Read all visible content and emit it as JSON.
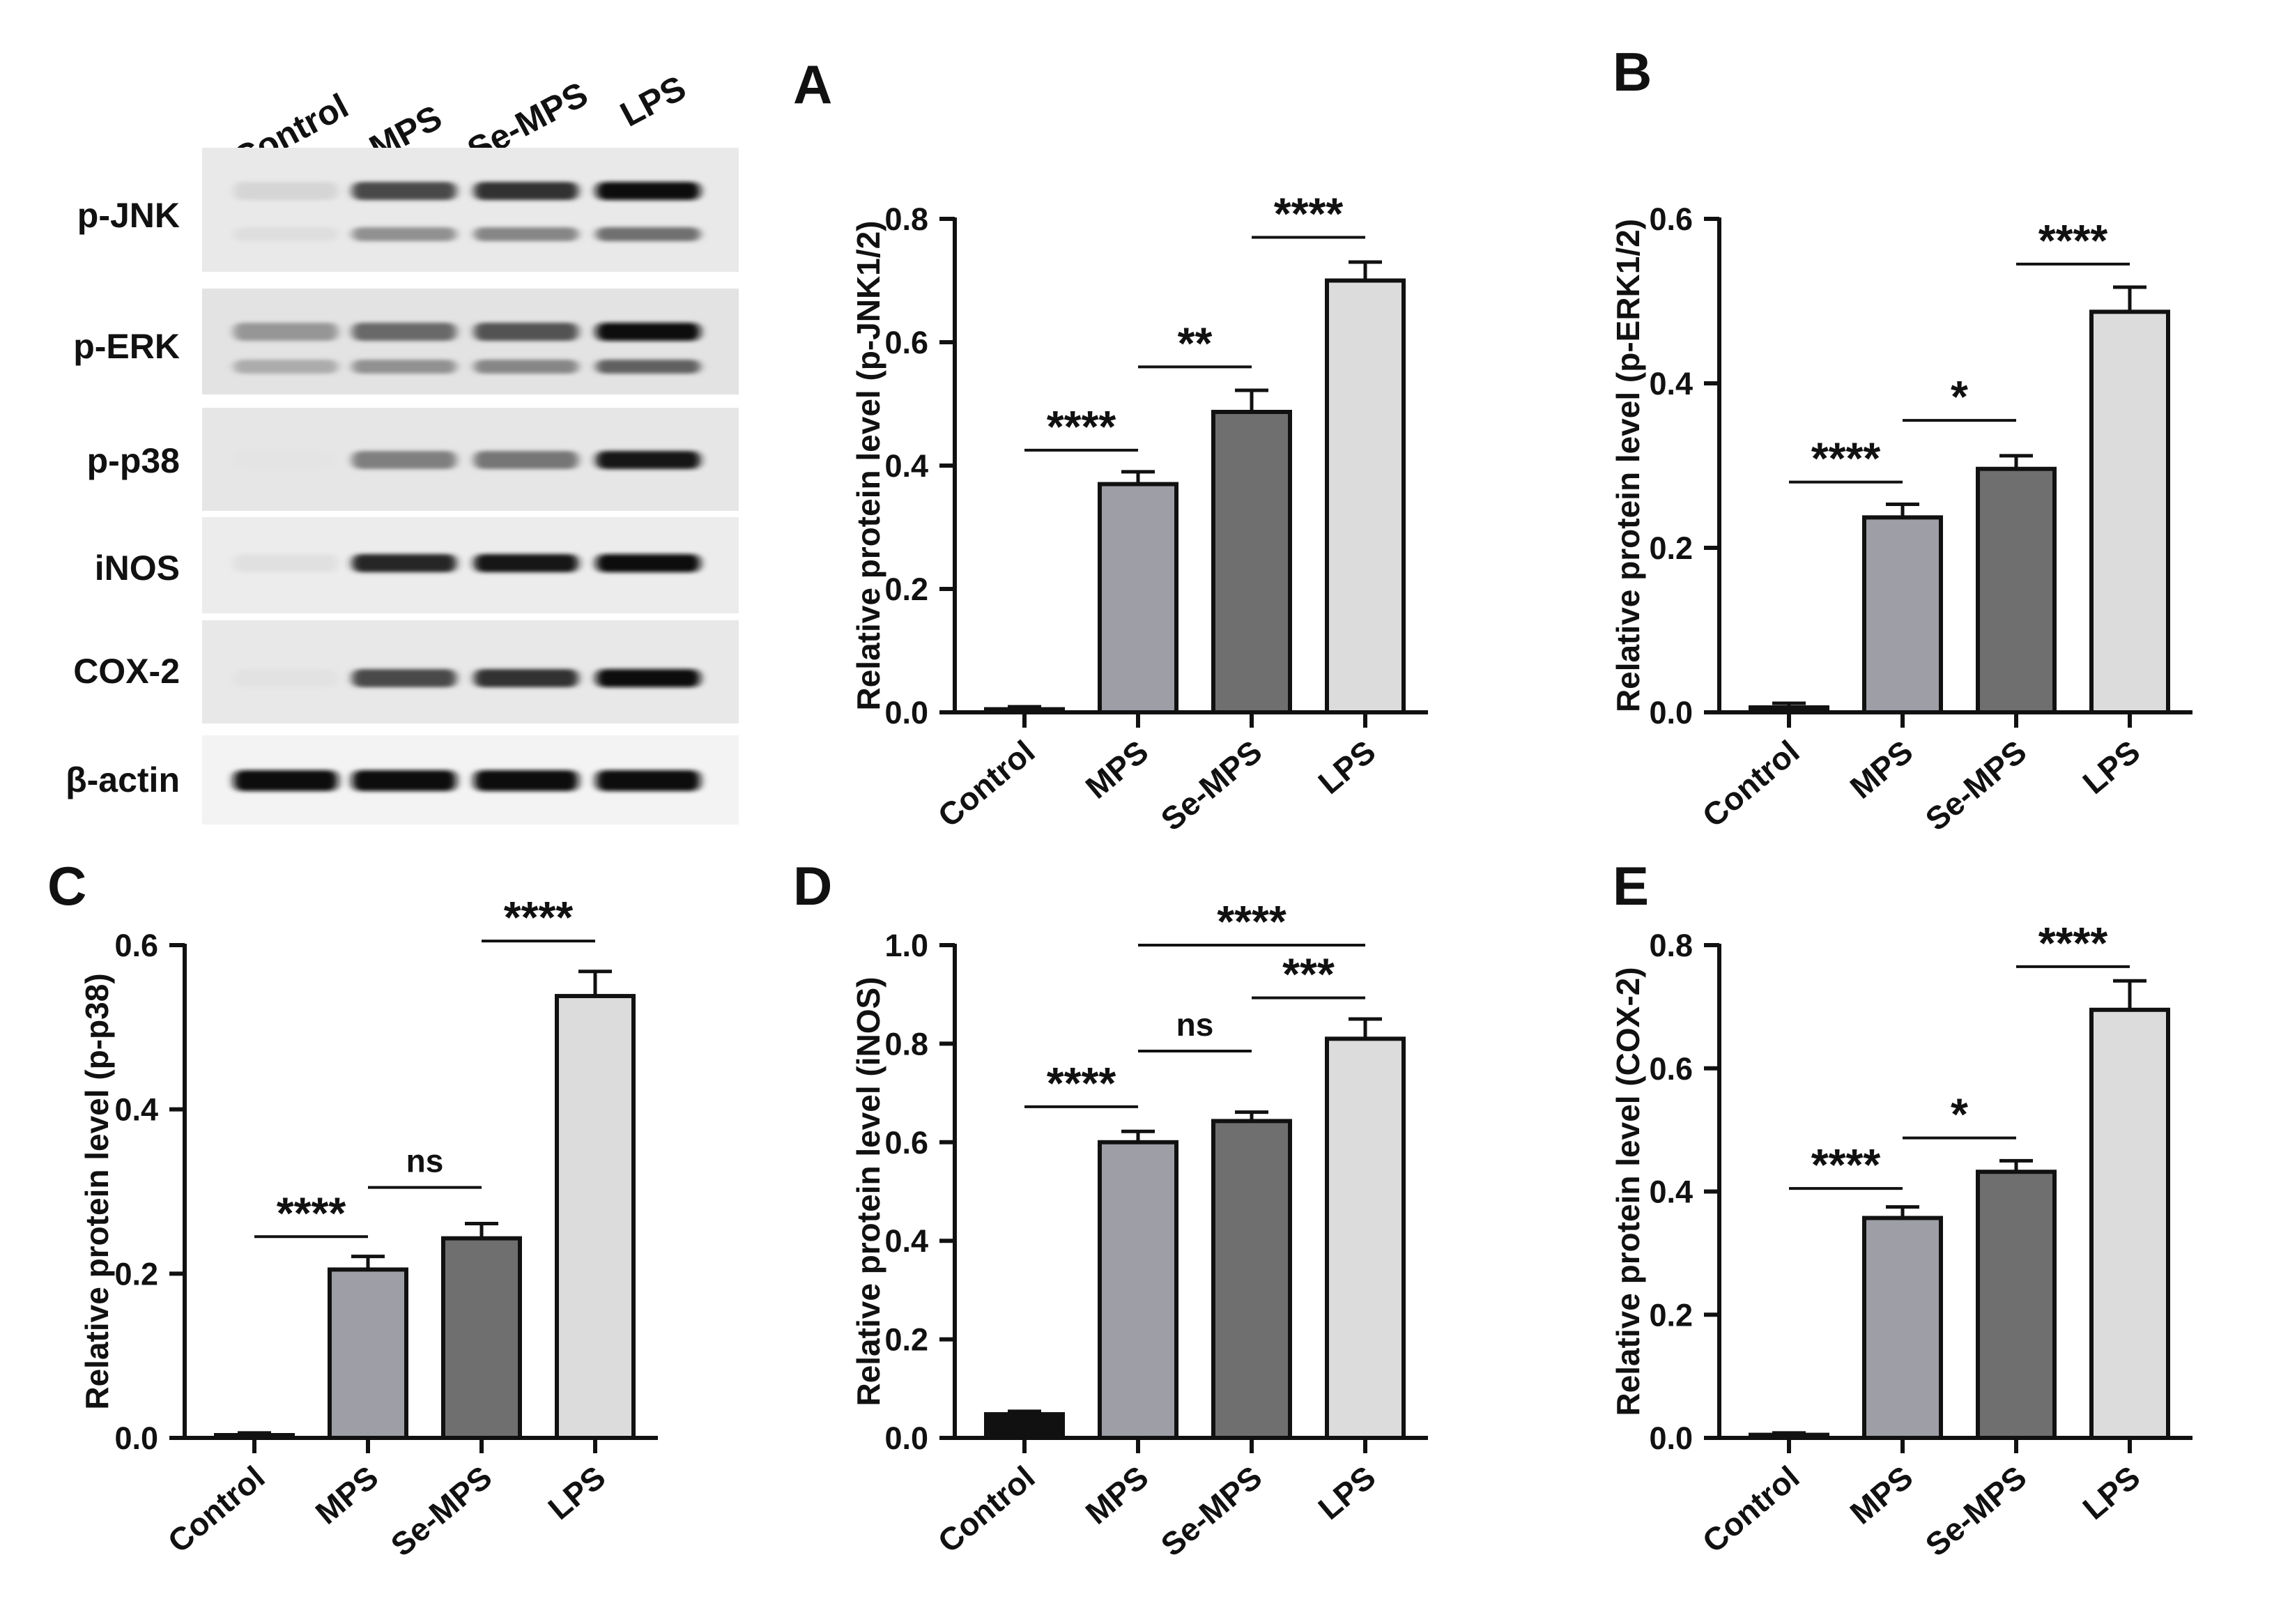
{
  "western_blot": {
    "lane_labels": [
      "Control",
      "MPS",
      "Se-MPS",
      "LPS"
    ],
    "row_labels": [
      "p-JNK",
      "p-ERK",
      "p-p38",
      "iNOS",
      "COX-2",
      "β-actin"
    ],
    "band_intensity": [
      {
        "upper": [
          0.1,
          0.72,
          0.82,
          0.98
        ],
        "lower": [
          0.06,
          0.4,
          0.45,
          0.55
        ]
      },
      {
        "upper": [
          0.38,
          0.58,
          0.68,
          0.98
        ],
        "lower": [
          0.28,
          0.4,
          0.45,
          0.62
        ]
      },
      {
        "upper": [
          0.03,
          0.48,
          0.52,
          0.95
        ]
      },
      {
        "upper": [
          0.05,
          0.88,
          0.95,
          1.0
        ]
      },
      {
        "upper": [
          0.04,
          0.72,
          0.82,
          1.0
        ]
      },
      {
        "upper": [
          0.98,
          0.98,
          0.98,
          0.98
        ]
      }
    ]
  },
  "chart_data": [
    {
      "panel": "A",
      "type": "bar",
      "categories": [
        "Control",
        "MPS",
        "Se-MPS",
        "LPS"
      ],
      "values": [
        0.005,
        0.37,
        0.487,
        0.7
      ],
      "errors": [
        0.004,
        0.02,
        0.035,
        0.03
      ],
      "ylabel": "Relative protein level (p-JNK1/2)",
      "ylim": [
        0,
        0.8
      ],
      "ticks": [
        "0.0",
        "0.2",
        "0.4",
        "0.6",
        "0.8"
      ],
      "bar_colors": [
        "#111111",
        "#9d9ea6",
        "#6f6f6f",
        "#dcdcdc"
      ],
      "significance": [
        {
          "from": 0,
          "to": 1,
          "label": "****",
          "y": 0.425
        },
        {
          "from": 1,
          "to": 2,
          "label": "**",
          "y": 0.56
        },
        {
          "from": 2,
          "to": 3,
          "label": "****",
          "y": 0.77
        }
      ]
    },
    {
      "panel": "B",
      "type": "bar",
      "categories": [
        "Control",
        "MPS",
        "Se-MPS",
        "LPS"
      ],
      "values": [
        0.006,
        0.237,
        0.296,
        0.487
      ],
      "errors": [
        0.005,
        0.016,
        0.016,
        0.03
      ],
      "ylabel": "Relative protein level (p-ERK1/2)",
      "ylim": [
        0,
        0.6
      ],
      "ticks": [
        "0.0",
        "0.2",
        "0.4",
        "0.6"
      ],
      "bar_colors": [
        "#111111",
        "#9d9ea6",
        "#6f6f6f",
        "#dcdcdc"
      ],
      "significance": [
        {
          "from": 0,
          "to": 1,
          "label": "****",
          "y": 0.28
        },
        {
          "from": 1,
          "to": 2,
          "label": "*",
          "y": 0.355
        },
        {
          "from": 2,
          "to": 3,
          "label": "****",
          "y": 0.545
        }
      ]
    },
    {
      "panel": "C",
      "type": "bar",
      "categories": [
        "Control",
        "MPS",
        "Se-MPS",
        "LPS"
      ],
      "values": [
        0.003,
        0.205,
        0.243,
        0.538
      ],
      "errors": [
        0.003,
        0.016,
        0.018,
        0.03
      ],
      "ylabel": "Relative protein level (p-p38)",
      "ylim": [
        0,
        0.6
      ],
      "ticks": [
        "0.0",
        "0.2",
        "0.4",
        "0.6"
      ],
      "bar_colors": [
        "#111111",
        "#9d9ea6",
        "#6f6f6f",
        "#dcdcdc"
      ],
      "significance": [
        {
          "from": 0,
          "to": 1,
          "label": "****",
          "y": 0.245
        },
        {
          "from": 1,
          "to": 2,
          "label": "ns",
          "y": 0.305
        },
        {
          "from": 2,
          "to": 3,
          "label": "****",
          "y": 0.605
        }
      ]
    },
    {
      "panel": "D",
      "type": "bar",
      "categories": [
        "Control",
        "MPS",
        "Se-MPS",
        "LPS"
      ],
      "values": [
        0.048,
        0.6,
        0.643,
        0.81
      ],
      "errors": [
        0.006,
        0.022,
        0.018,
        0.04
      ],
      "ylabel": "Relative protein level (iNOS)",
      "ylim": [
        0,
        1.0
      ],
      "ticks": [
        "0.0",
        "0.2",
        "0.4",
        "0.6",
        "0.8",
        "1.0"
      ],
      "bar_colors": [
        "#111111",
        "#9d9ea6",
        "#6f6f6f",
        "#dcdcdc"
      ],
      "significance": [
        {
          "from": 0,
          "to": 1,
          "label": "****",
          "y": 0.672
        },
        {
          "from": 1,
          "to": 2,
          "label": "ns",
          "y": 0.785
        },
        {
          "from": 2,
          "to": 3,
          "label": "***",
          "y": 0.893
        },
        {
          "from": 1,
          "to": 3,
          "label": "****",
          "y": 1.0
        }
      ]
    },
    {
      "panel": "E",
      "type": "bar",
      "categories": [
        "Control",
        "MPS",
        "Se-MPS",
        "LPS"
      ],
      "values": [
        0.005,
        0.357,
        0.432,
        0.695
      ],
      "errors": [
        0.003,
        0.018,
        0.018,
        0.047
      ],
      "ylabel": "Relative protein level (COX-2)",
      "ylim": [
        0,
        0.8
      ],
      "ticks": [
        "0.0",
        "0.2",
        "0.4",
        "0.6",
        "0.8"
      ],
      "bar_colors": [
        "#111111",
        "#9d9ea6",
        "#6f6f6f",
        "#dcdcdc"
      ],
      "significance": [
        {
          "from": 0,
          "to": 1,
          "label": "****",
          "y": 0.405
        },
        {
          "from": 1,
          "to": 2,
          "label": "*",
          "y": 0.487
        },
        {
          "from": 2,
          "to": 3,
          "label": "****",
          "y": 0.765
        }
      ]
    }
  ]
}
